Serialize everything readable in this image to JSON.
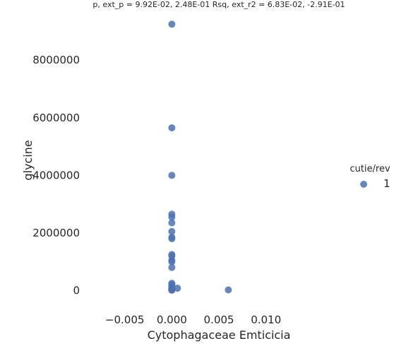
{
  "chart_data": {
    "type": "scatter",
    "title": "p, ext_p = 9.92E-02, 2.48E-01 Rsq, ext_r2 = 6.83E-02, -2.91E-01",
    "xlabel": "Cytophagaceae Emticicia",
    "ylabel": "glycine",
    "xlim": [
      -0.0085,
      0.0155
    ],
    "ylim": [
      -700000,
      9600000
    ],
    "xticks": [
      -0.005,
      0.0,
      0.005,
      0.01
    ],
    "xtick_labels": [
      "−0.005",
      "0.000",
      "0.005",
      "0.010"
    ],
    "yticks": [
      0,
      2000000,
      4000000,
      6000000,
      8000000
    ],
    "ytick_labels": [
      "0",
      "2000000",
      "4000000",
      "6000000",
      "8000000"
    ],
    "grid": false,
    "legend": {
      "title": "cutie/rev",
      "placement": "right",
      "entries": [
        "1"
      ]
    },
    "series": [
      {
        "name": "1",
        "color": "#4c72b0",
        "x": [
          0,
          0,
          0,
          0,
          0,
          0,
          0,
          0,
          0,
          0,
          0,
          0,
          0,
          0,
          0,
          0,
          0,
          0,
          0,
          0,
          0,
          0,
          0,
          0,
          0.0006,
          0.006
        ],
        "y": [
          9250000,
          5650000,
          4000000,
          2650000,
          2550000,
          2350000,
          2050000,
          1850000,
          1800000,
          1250000,
          1200000,
          1050000,
          1000000,
          800000,
          250000,
          200000,
          150000,
          100000,
          70000,
          50000,
          40000,
          30000,
          20000,
          10000,
          80000,
          20000
        ]
      }
    ]
  }
}
